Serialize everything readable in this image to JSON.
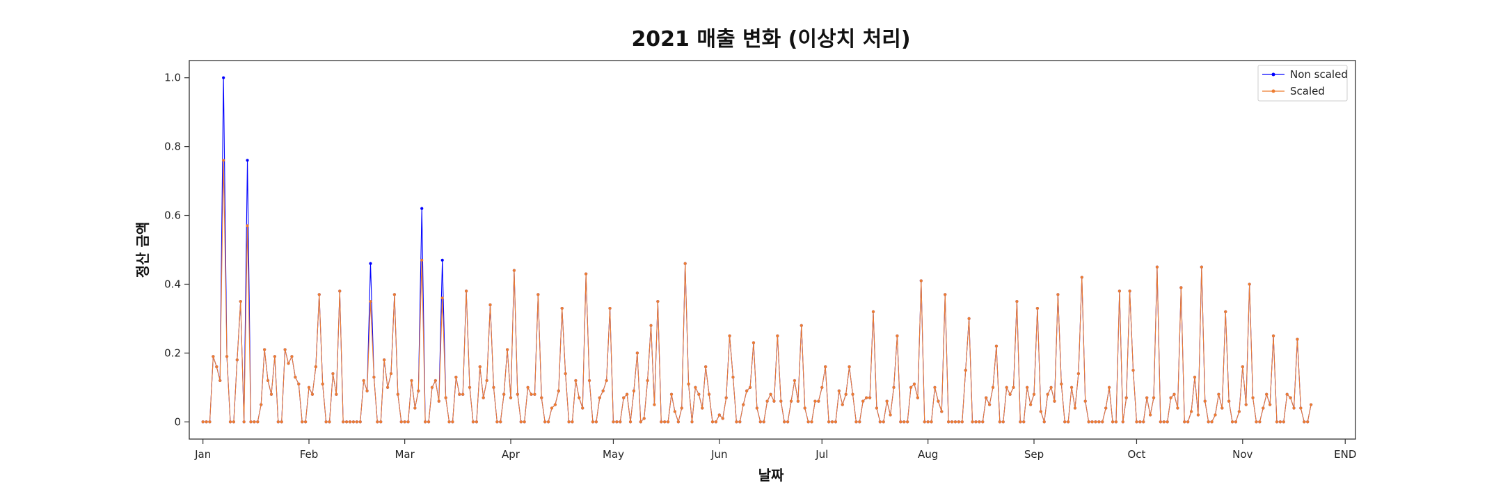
{
  "chart_data": {
    "type": "line",
    "title": "2021 매출 변화 (이상치 처리)",
    "xlabel": "날짜",
    "ylabel": "정산 금액",
    "ylim": [
      -0.05,
      1.05
    ],
    "yticks": [
      0,
      0.2,
      0.4,
      0.6,
      0.8,
      1.0
    ],
    "yticklabels": [
      "0",
      "0.2",
      "0.4",
      "0.6",
      "0.8",
      "1.0"
    ],
    "xlim": [
      -4,
      337
    ],
    "xtick_days": [
      0,
      31,
      59,
      90,
      120,
      151,
      181,
      212,
      243,
      273,
      304,
      334
    ],
    "xticklabels": [
      "Jan",
      "Feb",
      "Mar",
      "Apr",
      "May",
      "Jun",
      "Jul",
      "Aug",
      "Sep",
      "Oct",
      "Nov",
      "END"
    ],
    "x_note": "day index from 2021-01-01",
    "legend": {
      "position": "top-right",
      "entries": [
        "Non scaled",
        "Scaled"
      ]
    },
    "grid": false,
    "series": [
      {
        "name": "Non scaled",
        "color": "#0000ff",
        "values": [
          0,
          0,
          0,
          0.19,
          0.16,
          0.12,
          1.0,
          0.19,
          0,
          0,
          0.18,
          0.35,
          0,
          0.76,
          0,
          0,
          0,
          0.05,
          0.21,
          0.12,
          0.08,
          0.19,
          0,
          0,
          0.21,
          0.17,
          0.19,
          0.13,
          0.11,
          0,
          0,
          0.1,
          0.08,
          0.16,
          0.37,
          0.11,
          0,
          0,
          0.14,
          0.08,
          0.38,
          0,
          0,
          0,
          0,
          0,
          0,
          0.12,
          0.09,
          0.46,
          0.13,
          0,
          0,
          0.18,
          0.1,
          0.14,
          0.37,
          0.08,
          0,
          0,
          0,
          0.12,
          0.04,
          0.09,
          0.62,
          0,
          0,
          0.1,
          0.12,
          0.06,
          0.47,
          0.07,
          0,
          0,
          0.13,
          0.08,
          0.08,
          0.38,
          0.1,
          0,
          0,
          0.16,
          0.07,
          0.12,
          0.34,
          0.1,
          0,
          0,
          0.08,
          0.21,
          0.07,
          0.44,
          0.08,
          0,
          0,
          0.1,
          0.08,
          0.08,
          0.37,
          0.07,
          0,
          0,
          0.04,
          0.05,
          0.09,
          0.33,
          0.14,
          0,
          0,
          0.12,
          0.07,
          0.04,
          0.43,
          0.12,
          0,
          0,
          0.07,
          0.09,
          0.12,
          0.33,
          0,
          0,
          0,
          0.07,
          0.08,
          0,
          0.09,
          0.2,
          0,
          0.01,
          0.12,
          0.28,
          0.05,
          0.35,
          0,
          0,
          0,
          0.08,
          0.03,
          0,
          0.04,
          0.46,
          0.11,
          0,
          0.1,
          0.08,
          0.04,
          0.16,
          0.08,
          0,
          0,
          0.02,
          0.01,
          0.07,
          0.25,
          0.13,
          0,
          0,
          0.05,
          0.09,
          0.1,
          0.23,
          0.04,
          0,
          0,
          0.06,
          0.08,
          0.06,
          0.25,
          0.06,
          0,
          0,
          0.06,
          0.12,
          0.06,
          0.28,
          0.04,
          0,
          0,
          0.06,
          0.06,
          0.1,
          0.16,
          0,
          0,
          0,
          0.09,
          0.05,
          0.08,
          0.16,
          0.08,
          0,
          0,
          0.06,
          0.07,
          0.07,
          0.32,
          0.04,
          0,
          0,
          0.06,
          0.02,
          0.1,
          0.25,
          0,
          0,
          0,
          0.1,
          0.11,
          0.07,
          0.41,
          0,
          0,
          0,
          0.1,
          0.06,
          0.03,
          0.37,
          0,
          0,
          0,
          0,
          0,
          0.15,
          0.3,
          0,
          0,
          0,
          0,
          0.07,
          0.05,
          0.1,
          0.22,
          0,
          0,
          0.1,
          0.08,
          0.1,
          0.35,
          0,
          0,
          0.1,
          0.05,
          0.08,
          0.33,
          0.03,
          0,
          0.08,
          0.1,
          0.06,
          0.37,
          0.11,
          0,
          0,
          0.1,
          0.04,
          0.14,
          0.42,
          0.06,
          0,
          0,
          0,
          0,
          0,
          0.04,
          0.1,
          0,
          0,
          0.38,
          0,
          0.07,
          0.38,
          0.15,
          0,
          0,
          0,
          0.07,
          0.02,
          0.07,
          0.45,
          0,
          0,
          0,
          0.07,
          0.08,
          0.04,
          0.39,
          0,
          0,
          0.03,
          0.13,
          0.02,
          0.45,
          0.06,
          0,
          0,
          0.02,
          0.08,
          0.04,
          0.32,
          0.06,
          0,
          0,
          0.03,
          0.16,
          0.05,
          0.4,
          0.07,
          0,
          0,
          0.04,
          0.08,
          0.05,
          0.25,
          0,
          0,
          0,
          0.08,
          0.07,
          0.04,
          0.24,
          0.04,
          0,
          0,
          0.05
        ]
      },
      {
        "name": "Scaled",
        "color": "#ed7d31",
        "values": [
          0,
          0,
          0,
          0.19,
          0.16,
          0.12,
          0.76,
          0.19,
          0,
          0,
          0.18,
          0.35,
          0,
          0.57,
          0,
          0,
          0,
          0.05,
          0.21,
          0.12,
          0.08,
          0.19,
          0,
          0,
          0.21,
          0.17,
          0.19,
          0.13,
          0.11,
          0,
          0,
          0.1,
          0.08,
          0.16,
          0.37,
          0.11,
          0,
          0,
          0.14,
          0.08,
          0.38,
          0,
          0,
          0,
          0,
          0,
          0,
          0.12,
          0.09,
          0.35,
          0.13,
          0,
          0,
          0.18,
          0.1,
          0.14,
          0.37,
          0.08,
          0,
          0,
          0,
          0.12,
          0.04,
          0.09,
          0.47,
          0,
          0,
          0.1,
          0.12,
          0.06,
          0.36,
          0.07,
          0,
          0,
          0.13,
          0.08,
          0.08,
          0.38,
          0.1,
          0,
          0,
          0.16,
          0.07,
          0.12,
          0.34,
          0.1,
          0,
          0,
          0.08,
          0.21,
          0.07,
          0.44,
          0.08,
          0,
          0,
          0.1,
          0.08,
          0.08,
          0.37,
          0.07,
          0,
          0,
          0.04,
          0.05,
          0.09,
          0.33,
          0.14,
          0,
          0,
          0.12,
          0.07,
          0.04,
          0.43,
          0.12,
          0,
          0,
          0.07,
          0.09,
          0.12,
          0.33,
          0,
          0,
          0,
          0.07,
          0.08,
          0,
          0.09,
          0.2,
          0,
          0.01,
          0.12,
          0.28,
          0.05,
          0.35,
          0,
          0,
          0,
          0.08,
          0.03,
          0,
          0.04,
          0.46,
          0.11,
          0,
          0.1,
          0.08,
          0.04,
          0.16,
          0.08,
          0,
          0,
          0.02,
          0.01,
          0.07,
          0.25,
          0.13,
          0,
          0,
          0.05,
          0.09,
          0.1,
          0.23,
          0.04,
          0,
          0,
          0.06,
          0.08,
          0.06,
          0.25,
          0.06,
          0,
          0,
          0.06,
          0.12,
          0.06,
          0.28,
          0.04,
          0,
          0,
          0.06,
          0.06,
          0.1,
          0.16,
          0,
          0,
          0,
          0.09,
          0.05,
          0.08,
          0.16,
          0.08,
          0,
          0,
          0.06,
          0.07,
          0.07,
          0.32,
          0.04,
          0,
          0,
          0.06,
          0.02,
          0.1,
          0.25,
          0,
          0,
          0,
          0.1,
          0.11,
          0.07,
          0.41,
          0,
          0,
          0,
          0.1,
          0.06,
          0.03,
          0.37,
          0,
          0,
          0,
          0,
          0,
          0.15,
          0.3,
          0,
          0,
          0,
          0,
          0.07,
          0.05,
          0.1,
          0.22,
          0,
          0,
          0.1,
          0.08,
          0.1,
          0.35,
          0,
          0,
          0.1,
          0.05,
          0.08,
          0.33,
          0.03,
          0,
          0.08,
          0.1,
          0.06,
          0.37,
          0.11,
          0,
          0,
          0.1,
          0.04,
          0.14,
          0.42,
          0.06,
          0,
          0,
          0,
          0,
          0,
          0.04,
          0.1,
          0,
          0,
          0.38,
          0,
          0.07,
          0.38,
          0.15,
          0,
          0,
          0,
          0.07,
          0.02,
          0.07,
          0.45,
          0,
          0,
          0,
          0.07,
          0.08,
          0.04,
          0.39,
          0,
          0,
          0.03,
          0.13,
          0.02,
          0.45,
          0.06,
          0,
          0,
          0.02,
          0.08,
          0.04,
          0.32,
          0.06,
          0,
          0,
          0.03,
          0.16,
          0.05,
          0.4,
          0.07,
          0,
          0,
          0.04,
          0.08,
          0.05,
          0.25,
          0,
          0,
          0,
          0.08,
          0.07,
          0.04,
          0.24,
          0.04,
          0,
          0,
          0.05
        ]
      }
    ]
  }
}
